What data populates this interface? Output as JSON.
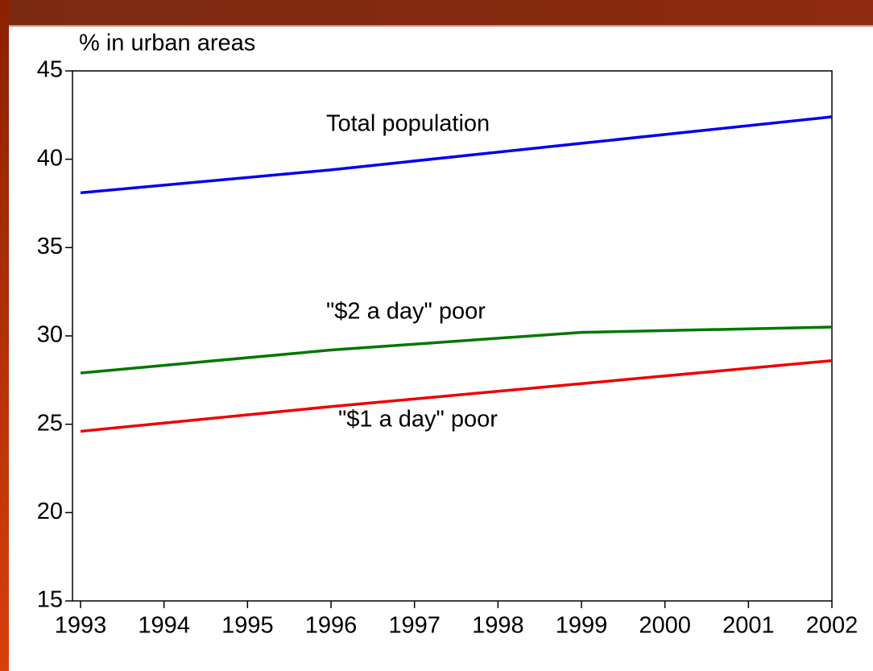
{
  "chart_data": {
    "type": "line",
    "y_label": "% in urban areas",
    "x": [
      1993,
      1996,
      1999,
      2002
    ],
    "series": [
      {
        "name": "Total population",
        "color": "#0000ee",
        "values": [
          38.1,
          39.4,
          40.9,
          42.4
        ]
      },
      {
        "name": "\"$2 a day\" poor",
        "color": "#007700",
        "values": [
          27.9,
          29.2,
          30.2,
          30.5
        ]
      },
      {
        "name": "\"$1 a day\" poor",
        "color": "#ee0000",
        "values": [
          24.6,
          26.0,
          27.3,
          28.6
        ]
      }
    ],
    "xlim": [
      1993,
      2002
    ],
    "xticks": [
      1993,
      1994,
      1995,
      1996,
      1997,
      1998,
      1999,
      2000,
      2001,
      2002
    ],
    "ylim": [
      15,
      45
    ],
    "yticks": [
      15,
      20,
      25,
      30,
      35,
      40,
      45
    ]
  }
}
